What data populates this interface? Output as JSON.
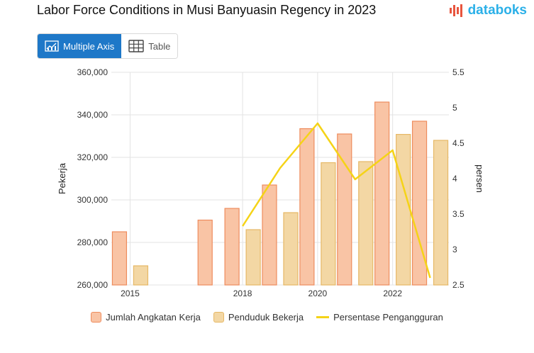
{
  "header": {
    "title": "Labor Force Conditions in Musi Banyuasin Regency in 2023",
    "logo_text": "databoks"
  },
  "tabs": [
    {
      "label": "Multiple Axis",
      "icon": "chart-icon",
      "active": true
    },
    {
      "label": "Table",
      "icon": "table-icon",
      "active": false
    }
  ],
  "colors": {
    "angkatan_fill": "#f9c4a5",
    "angkatan_stroke": "#ee8c5d",
    "bekerja_fill": "#f3d7a4",
    "bekerja_stroke": "#e6b866",
    "line": "#f5d317",
    "logo": "#2bb0e8"
  },
  "chart_data": {
    "type": "bar",
    "x": [
      2015,
      2016,
      2017,
      2018,
      2019,
      2020,
      2021,
      2022,
      2023
    ],
    "x_tick_labels": [
      "2015",
      "2018",
      "2020",
      "2022"
    ],
    "x_tick_values": [
      2015,
      2018,
      2020,
      2022
    ],
    "ylabel": "Pekerja",
    "y2label": "persen",
    "ylim": [
      260000,
      360000
    ],
    "y_ticks": [
      "260,000",
      "280,000",
      "300,000",
      "320,000",
      "340,000",
      "360,000"
    ],
    "y_tick_values": [
      260000,
      280000,
      300000,
      320000,
      340000,
      360000
    ],
    "y2lim": [
      2.5,
      5.5
    ],
    "y2_ticks": [
      "2.5",
      "3",
      "3.5",
      "4",
      "4.5",
      "5",
      "5.5"
    ],
    "y2_tick_values": [
      2.5,
      3,
      3.5,
      4,
      4.5,
      5,
      5.5
    ],
    "grid": true,
    "legend_position": "bottom",
    "series": [
      {
        "name": "Jumlah Angkatan Kerja",
        "type": "bar",
        "axis": "left",
        "values": [
          285000,
          null,
          290500,
          296000,
          307000,
          333500,
          331000,
          346000,
          337000
        ]
      },
      {
        "name": "Penduduk Bekerja",
        "type": "bar",
        "axis": "left",
        "values": [
          269000,
          null,
          null,
          286000,
          294000,
          317500,
          318000,
          330800,
          328000
        ]
      },
      {
        "name": "Persentase Pengangguran",
        "type": "line",
        "axis": "right",
        "values": [
          null,
          null,
          null,
          3.33,
          4.15,
          4.78,
          3.99,
          4.4,
          2.6
        ]
      }
    ]
  }
}
